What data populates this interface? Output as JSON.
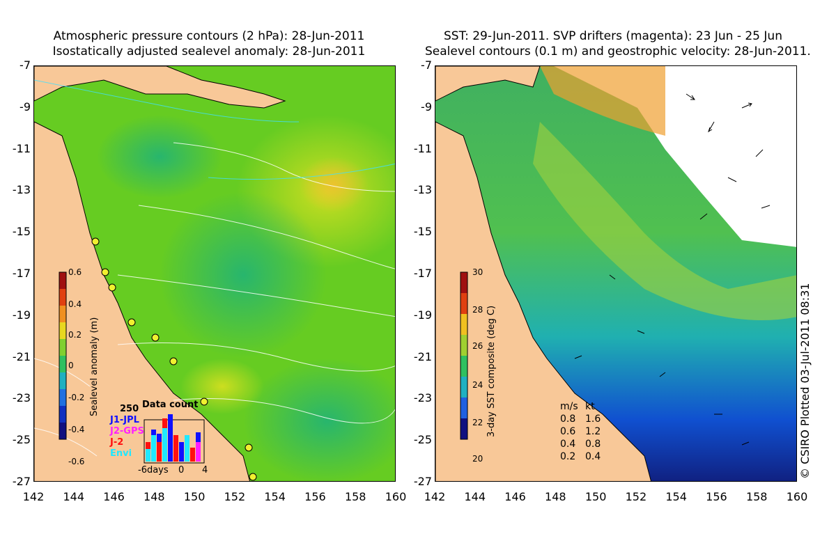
{
  "left_panel": {
    "title_line1": "Atmospheric pressure contours (2 hPa): 28-Jun-2011",
    "title_line2": "Isostatically adjusted sealevel anomaly: 28-Jun-2011",
    "colorbar": {
      "title": "Sealevel anomaly (m)",
      "ticks": [
        "0.6",
        "0.4",
        "0.2",
        "0",
        "-0.2",
        "-0.4",
        "-0.6"
      ]
    },
    "data_count": {
      "title": "Data count",
      "max_label": "250",
      "series": [
        {
          "name": "J1-JPL",
          "color": "#1010ff"
        },
        {
          "name": "J2-GPS",
          "color": "#ff20ff"
        },
        {
          "name": "J-2",
          "color": "#ff1010"
        },
        {
          "name": "Envi",
          "color": "#20e8ff"
        }
      ],
      "x_labels": [
        "-6days",
        "0",
        "4"
      ]
    }
  },
  "right_panel": {
    "title_line1": "SST: 29-Jun-2011. SVP drifters (magenta): 23 Jun - 25 Jun",
    "title_line2": "Sealevel contours (0.1 m) and geostrophic velocity: 28-Jun-2011.",
    "colorbar": {
      "title": "3-day SST composite (deg C)",
      "ticks": [
        "30",
        "28",
        "26",
        "24",
        "22",
        "20"
      ]
    },
    "velocity_legend": {
      "header_ms": "m/s",
      "header_kt": "kt",
      "rows": [
        {
          "ms": "0.8",
          "kt": "1.6"
        },
        {
          "ms": "0.6",
          "kt": "1.2"
        },
        {
          "ms": "0.4",
          "kt": "0.8"
        },
        {
          "ms": "0.2",
          "kt": "0.4"
        }
      ]
    }
  },
  "axes": {
    "y_labels": [
      "-7",
      "-9",
      "-11",
      "-13",
      "-15",
      "-17",
      "-19",
      "-21",
      "-23",
      "-25",
      "-27"
    ],
    "x_labels": [
      "142",
      "144",
      "146",
      "148",
      "150",
      "152",
      "154",
      "156",
      "158",
      "160"
    ]
  },
  "copyright": "© CSIRO Plotted 03-Jul-2011 08:31",
  "colors": {
    "land": "#f8c898",
    "sla_base": "#66cc22",
    "sst_base": "#44c060"
  }
}
